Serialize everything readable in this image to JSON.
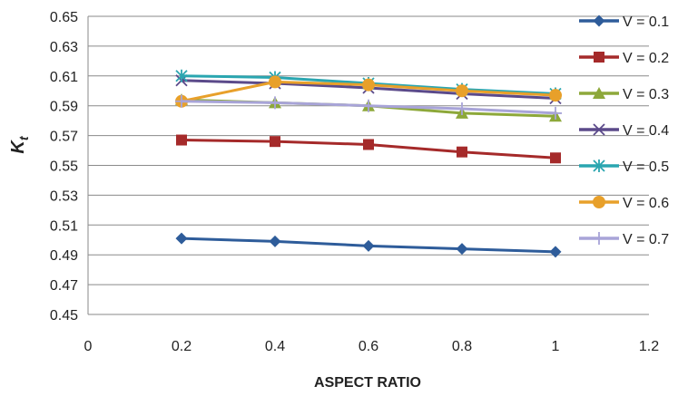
{
  "chart_data": {
    "type": "line",
    "title": "",
    "xlabel": "ASPECT RATIO",
    "ylabel": "K",
    "ylabel_subscript": "t",
    "xlim": [
      0,
      1.2
    ],
    "ylim": [
      0.45,
      0.65
    ],
    "xticks": [
      "0",
      "0.2",
      "0.4",
      "0.6",
      "0.8",
      "1",
      "1.2"
    ],
    "yticks": [
      "0.45",
      "0.47",
      "0.49",
      "0.51",
      "0.53",
      "0.55",
      "0.57",
      "0.59",
      "0.61",
      "0.63",
      "0.65"
    ],
    "grid": "horizontal",
    "legend_position": "right",
    "x": [
      0.2,
      0.4,
      0.6,
      0.8,
      1.0
    ],
    "series": [
      {
        "name": "V = 0.1",
        "color": "#2E5C9A",
        "marker": "diamond",
        "values": [
          0.501,
          0.499,
          0.496,
          0.494,
          0.492
        ]
      },
      {
        "name": "V = 0.2",
        "color": "#A52A2A",
        "marker": "square",
        "values": [
          0.567,
          0.566,
          0.564,
          0.559,
          0.555
        ]
      },
      {
        "name": "V = 0.3",
        "color": "#8DA83A",
        "marker": "triangle",
        "values": [
          0.594,
          0.592,
          0.59,
          0.585,
          0.583
        ]
      },
      {
        "name": "V = 0.4",
        "color": "#5B4A8A",
        "marker": "x",
        "values": [
          0.607,
          0.605,
          0.602,
          0.598,
          0.595
        ]
      },
      {
        "name": "V = 0.5",
        "color": "#2AA6B0",
        "marker": "star",
        "values": [
          0.61,
          0.609,
          0.605,
          0.601,
          0.598
        ]
      },
      {
        "name": "V = 0.6",
        "color": "#E8A02A",
        "marker": "circle",
        "values": [
          0.593,
          0.606,
          0.604,
          0.6,
          0.597
        ]
      },
      {
        "name": "V = 0.7",
        "color": "#A8A4D8",
        "marker": "plus",
        "values": [
          0.593,
          0.592,
          0.59,
          0.588,
          0.585
        ]
      }
    ]
  }
}
